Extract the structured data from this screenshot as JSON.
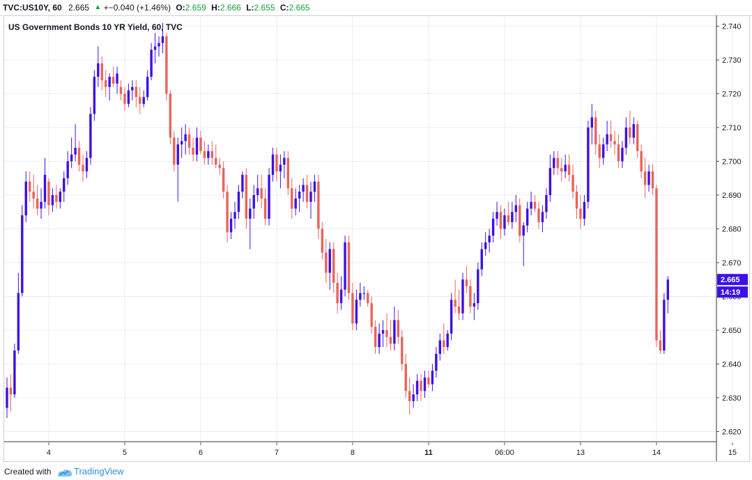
{
  "header": {
    "symbol": "TVC:US10Y, 60",
    "last": "2.665",
    "change": "+−0.040 (+1.46%)",
    "o_label": "O:",
    "o_value": "2.659",
    "h_label": "H:",
    "h_value": "2.666",
    "l_label": "L:",
    "l_value": "2.655",
    "c_label": "C:",
    "c_value": "2.665",
    "trend_icon": "triangle-up"
  },
  "colors": {
    "up": "#3c10e6",
    "down": "#e8645a",
    "grid": "#e8eef3",
    "axis_text": "#131722",
    "label_bg": "#3c10e6"
  },
  "footer": {
    "created_with": "Created with",
    "brand": "TradingView"
  },
  "chart_data": {
    "type": "candlestick",
    "title": "US Government Bonds 10 YR Yield, 60, TVC",
    "ylim": [
      2.617,
      2.743
    ],
    "y_ticks": [
      "2.620",
      "2.630",
      "2.640",
      "2.650",
      "2.660",
      "2.670",
      "2.680",
      "2.690",
      "2.700",
      "2.710",
      "2.720",
      "2.730",
      "2.740"
    ],
    "x_ticks": [
      {
        "label": "4",
        "bar": 11,
        "bold": false
      },
      {
        "label": "5",
        "bar": 31,
        "bold": false
      },
      {
        "label": "6",
        "bar": 51,
        "bold": false
      },
      {
        "label": "7",
        "bar": 71,
        "bold": false
      },
      {
        "label": "8",
        "bar": 91,
        "bold": false
      },
      {
        "label": "11",
        "bar": 111,
        "bold": true
      },
      {
        "label": "06:00",
        "bar": 131,
        "bold": false
      },
      {
        "label": "13",
        "bar": 151,
        "bold": false
      },
      {
        "label": "14",
        "bar": 171,
        "bold": false
      },
      {
        "label": "15",
        "bar": 191,
        "bold": false
      }
    ],
    "last_price": "2.665",
    "countdown": "14:19",
    "ohlc": [
      [
        2.627,
        2.636,
        2.624,
        2.633
      ],
      [
        2.633,
        2.637,
        2.626,
        2.631
      ],
      [
        2.631,
        2.646,
        2.63,
        2.644
      ],
      [
        2.644,
        2.667,
        2.643,
        2.661
      ],
      [
        2.661,
        2.687,
        2.66,
        2.684
      ],
      [
        2.684,
        2.697,
        2.682,
        2.694
      ],
      [
        2.694,
        2.697,
        2.688,
        2.691
      ],
      [
        2.691,
        2.696,
        2.686,
        2.689
      ],
      [
        2.689,
        2.693,
        2.684,
        2.686
      ],
      [
        2.686,
        2.692,
        2.683,
        2.688
      ],
      [
        2.688,
        2.701,
        2.686,
        2.696
      ],
      [
        2.694,
        2.695,
        2.684,
        2.687
      ],
      [
        2.687,
        2.692,
        2.685,
        2.69
      ],
      [
        2.69,
        2.693,
        2.686,
        2.688
      ],
      [
        2.688,
        2.692,
        2.686,
        2.691
      ],
      [
        2.691,
        2.697,
        2.688,
        2.695
      ],
      [
        2.695,
        2.703,
        2.693,
        2.7
      ],
      [
        2.7,
        2.707,
        2.698,
        2.702
      ],
      [
        2.702,
        2.711,
        2.7,
        2.704
      ],
      [
        2.704,
        2.706,
        2.697,
        2.699
      ],
      [
        2.699,
        2.702,
        2.694,
        2.697
      ],
      [
        2.697,
        2.703,
        2.695,
        2.701
      ],
      [
        2.701,
        2.716,
        2.699,
        2.714
      ],
      [
        2.714,
        2.727,
        2.712,
        2.725
      ],
      [
        2.725,
        2.734,
        2.722,
        2.729
      ],
      [
        2.729,
        2.731,
        2.721,
        2.724
      ],
      [
        2.724,
        2.727,
        2.719,
        2.722
      ],
      [
        2.722,
        2.726,
        2.718,
        2.725
      ],
      [
        2.725,
        2.728,
        2.722,
        2.723
      ],
      [
        2.723,
        2.728,
        2.72,
        2.726
      ],
      [
        2.722,
        2.724,
        2.718,
        2.72
      ],
      [
        2.72,
        2.722,
        2.715,
        2.717
      ],
      [
        2.717,
        2.723,
        2.716,
        2.721
      ],
      [
        2.721,
        2.724,
        2.718,
        2.722
      ],
      [
        2.722,
        2.724,
        2.716,
        2.719
      ],
      [
        2.719,
        2.722,
        2.714,
        2.717
      ],
      [
        2.717,
        2.721,
        2.716,
        2.719
      ],
      [
        2.719,
        2.727,
        2.718,
        2.725
      ],
      [
        2.725,
        2.735,
        2.724,
        2.733
      ],
      [
        2.733,
        2.738,
        2.729,
        2.734
      ],
      [
        2.734,
        2.737,
        2.731,
        2.735
      ],
      [
        2.735,
        2.741,
        2.732,
        2.737
      ],
      [
        2.737,
        2.738,
        2.718,
        2.72
      ],
      [
        2.72,
        2.721,
        2.705,
        2.707
      ],
      [
        2.707,
        2.709,
        2.697,
        2.699
      ],
      [
        2.699,
        2.707,
        2.688,
        2.705
      ],
      [
        2.705,
        2.71,
        2.701,
        2.706
      ],
      [
        2.706,
        2.711,
        2.702,
        2.708
      ],
      [
        2.708,
        2.71,
        2.702,
        2.704
      ],
      [
        2.704,
        2.707,
        2.7,
        2.702
      ],
      [
        2.702,
        2.71,
        2.7,
        2.707
      ],
      [
        2.707,
        2.709,
        2.702,
        2.703
      ],
      [
        2.703,
        2.706,
        2.699,
        2.701
      ],
      [
        2.701,
        2.705,
        2.699,
        2.703
      ],
      [
        2.703,
        2.706,
        2.699,
        2.701
      ],
      [
        2.701,
        2.705,
        2.698,
        2.699
      ],
      [
        2.699,
        2.701,
        2.696,
        2.698
      ],
      [
        2.698,
        2.7,
        2.689,
        2.691
      ],
      [
        2.691,
        2.693,
        2.676,
        2.679
      ],
      [
        2.679,
        2.685,
        2.677,
        2.683
      ],
      [
        2.683,
        2.688,
        2.68,
        2.685
      ],
      [
        2.685,
        2.693,
        2.683,
        2.691
      ],
      [
        2.691,
        2.697,
        2.689,
        2.696
      ],
      [
        2.696,
        2.698,
        2.68,
        2.683
      ],
      [
        2.683,
        2.689,
        2.674,
        2.686
      ],
      [
        2.686,
        2.693,
        2.683,
        2.69
      ],
      [
        2.69,
        2.696,
        2.688,
        2.692
      ],
      [
        2.692,
        2.696,
        2.686,
        2.689
      ],
      [
        2.689,
        2.692,
        2.681,
        2.683
      ],
      [
        2.683,
        2.698,
        2.681,
        2.696
      ],
      [
        2.696,
        2.704,
        2.694,
        2.702
      ],
      [
        2.702,
        2.704,
        2.694,
        2.697
      ],
      [
        2.697,
        2.702,
        2.692,
        2.699
      ],
      [
        2.699,
        2.703,
        2.695,
        2.701
      ],
      [
        2.701,
        2.703,
        2.69,
        2.692
      ],
      [
        2.692,
        2.695,
        2.683,
        2.686
      ],
      [
        2.686,
        2.692,
        2.684,
        2.689
      ],
      [
        2.689,
        2.693,
        2.685,
        2.691
      ],
      [
        2.691,
        2.695,
        2.688,
        2.693
      ],
      [
        2.693,
        2.696,
        2.686,
        2.688
      ],
      [
        2.688,
        2.694,
        2.683,
        2.691
      ],
      [
        2.691,
        2.696,
        2.688,
        2.694
      ],
      [
        2.694,
        2.696,
        2.677,
        2.68
      ],
      [
        2.68,
        2.682,
        2.671,
        2.673
      ],
      [
        2.673,
        2.677,
        2.664,
        2.667
      ],
      [
        2.667,
        2.676,
        2.662,
        2.674
      ],
      [
        2.674,
        2.676,
        2.661,
        2.664
      ],
      [
        2.664,
        2.667,
        2.655,
        2.658
      ],
      [
        2.658,
        2.666,
        2.656,
        2.662
      ],
      [
        2.662,
        2.678,
        2.66,
        2.676
      ],
      [
        2.676,
        2.678,
        2.659,
        2.661
      ],
      [
        2.661,
        2.664,
        2.65,
        2.652
      ],
      [
        2.652,
        2.662,
        2.65,
        2.659
      ],
      [
        2.659,
        2.664,
        2.657,
        2.661
      ],
      [
        2.661,
        2.663,
        2.659,
        2.661
      ],
      [
        2.661,
        2.662,
        2.657,
        2.658
      ],
      [
        2.658,
        2.66,
        2.649,
        2.651
      ],
      [
        2.651,
        2.653,
        2.643,
        2.645
      ],
      [
        2.645,
        2.652,
        2.643,
        2.649
      ],
      [
        2.649,
        2.653,
        2.645,
        2.65
      ],
      [
        2.65,
        2.655,
        2.645,
        2.648
      ],
      [
        2.648,
        2.653,
        2.644,
        2.646
      ],
      [
        2.646,
        2.657,
        2.644,
        2.653
      ],
      [
        2.653,
        2.656,
        2.646,
        2.648
      ],
      [
        2.648,
        2.65,
        2.638,
        2.64
      ],
      [
        2.64,
        2.643,
        2.63,
        2.632
      ],
      [
        2.632,
        2.636,
        2.625,
        2.629
      ],
      [
        2.629,
        2.634,
        2.627,
        2.631
      ],
      [
        2.631,
        2.637,
        2.629,
        2.635
      ],
      [
        2.635,
        2.637,
        2.629,
        2.632
      ],
      [
        2.632,
        2.638,
        2.63,
        2.636
      ],
      [
        2.636,
        2.638,
        2.633,
        2.634
      ],
      [
        2.634,
        2.64,
        2.632,
        2.638
      ],
      [
        2.638,
        2.645,
        2.636,
        2.643
      ],
      [
        2.643,
        2.649,
        2.641,
        2.647
      ],
      [
        2.647,
        2.652,
        2.643,
        2.645
      ],
      [
        2.645,
        2.65,
        2.644,
        2.649
      ],
      [
        2.649,
        2.661,
        2.647,
        2.659
      ],
      [
        2.659,
        2.665,
        2.655,
        2.657
      ],
      [
        2.657,
        2.662,
        2.653,
        2.655
      ],
      [
        2.655,
        2.667,
        2.653,
        2.665
      ],
      [
        2.665,
        2.669,
        2.661,
        2.663
      ],
      [
        2.663,
        2.665,
        2.655,
        2.657
      ],
      [
        2.657,
        2.661,
        2.653,
        2.658
      ],
      [
        2.658,
        2.67,
        2.656,
        2.668
      ],
      [
        2.668,
        2.676,
        2.666,
        2.674
      ],
      [
        2.674,
        2.679,
        2.672,
        2.676
      ],
      [
        2.676,
        2.68,
        2.673,
        2.678
      ],
      [
        2.678,
        2.685,
        2.676,
        2.683
      ],
      [
        2.683,
        2.688,
        2.681,
        2.685
      ],
      [
        2.685,
        2.687,
        2.677,
        2.68
      ],
      [
        2.68,
        2.686,
        2.678,
        2.684
      ],
      [
        2.684,
        2.688,
        2.681,
        2.682
      ],
      [
        2.682,
        2.688,
        2.68,
        2.685
      ],
      [
        2.685,
        2.69,
        2.682,
        2.687
      ],
      [
        2.687,
        2.689,
        2.676,
        2.678
      ],
      [
        2.678,
        2.682,
        2.669,
        2.681
      ],
      [
        2.681,
        2.688,
        2.679,
        2.686
      ],
      [
        2.686,
        2.691,
        2.684,
        2.688
      ],
      [
        2.688,
        2.69,
        2.685,
        2.686
      ],
      [
        2.686,
        2.688,
        2.68,
        2.682
      ],
      [
        2.682,
        2.687,
        2.679,
        2.685
      ],
      [
        2.685,
        2.692,
        2.683,
        2.69
      ],
      [
        2.69,
        2.702,
        2.688,
        2.698
      ],
      [
        2.698,
        2.703,
        2.696,
        2.701
      ],
      [
        2.701,
        2.703,
        2.696,
        2.698
      ],
      [
        2.698,
        2.701,
        2.694,
        2.697
      ],
      [
        2.697,
        2.702,
        2.695,
        2.699
      ],
      [
        2.699,
        2.702,
        2.694,
        2.696
      ],
      [
        2.696,
        2.699,
        2.689,
        2.691
      ],
      [
        2.691,
        2.693,
        2.683,
        2.686
      ],
      [
        2.686,
        2.69,
        2.68,
        2.683
      ],
      [
        2.683,
        2.69,
        2.681,
        2.688
      ],
      [
        2.688,
        2.712,
        2.686,
        2.71
      ],
      [
        2.71,
        2.717,
        2.705,
        2.713
      ],
      [
        2.713,
        2.715,
        2.702,
        2.705
      ],
      [
        2.705,
        2.708,
        2.698,
        2.701
      ],
      [
        2.701,
        2.707,
        2.699,
        2.705
      ],
      [
        2.705,
        2.712,
        2.703,
        2.708
      ],
      [
        2.708,
        2.712,
        2.704,
        2.706
      ],
      [
        2.706,
        2.709,
        2.702,
        2.705
      ],
      [
        2.705,
        2.708,
        2.698,
        2.7
      ],
      [
        2.7,
        2.706,
        2.698,
        2.704
      ],
      [
        2.704,
        2.713,
        2.702,
        2.71
      ],
      [
        2.71,
        2.715,
        2.705,
        2.707
      ],
      [
        2.707,
        2.713,
        2.705,
        2.711
      ],
      [
        2.711,
        2.712,
        2.701,
        2.703
      ],
      [
        2.703,
        2.705,
        2.695,
        2.697
      ],
      [
        2.697,
        2.701,
        2.689,
        2.693
      ],
      [
        2.693,
        2.699,
        2.691,
        2.697
      ],
      [
        2.697,
        2.699,
        2.69,
        2.692
      ],
      [
        2.692,
        2.693,
        2.645,
        2.647
      ],
      [
        2.647,
        2.65,
        2.643,
        2.644
      ],
      [
        2.644,
        2.661,
        2.643,
        2.659
      ],
      [
        2.659,
        2.666,
        2.655,
        2.665
      ]
    ]
  }
}
